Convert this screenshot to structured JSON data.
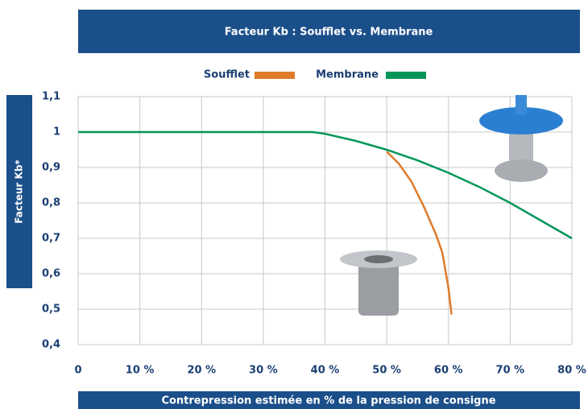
{
  "chart_data": {
    "type": "line",
    "title": "Facteur Kb : Soufflet vs. Membrane",
    "x_label": "Contrepression estimée en % de la pression de consigne",
    "y_label": "Facteur Kb*",
    "xlim": [
      0,
      80
    ],
    "ylim": [
      0.4,
      1.1
    ],
    "xticks": [
      0,
      {
        "value": 10,
        "label": "10 %"
      },
      {
        "value": 20,
        "label": "20 %"
      },
      {
        "value": 30,
        "label": "30 %"
      },
      {
        "value": 40,
        "label": "40 %"
      },
      {
        "value": 50,
        "label": "50 %"
      },
      {
        "value": 60,
        "label": "60 %"
      },
      {
        "value": 70,
        "label": "70 %"
      },
      {
        "value": 80,
        "label": "80 %"
      }
    ],
    "yticks": [
      {
        "value": 0.4,
        "label": "0,4"
      },
      {
        "value": 0.5,
        "label": "0,5"
      },
      {
        "value": 0.6,
        "label": "0,6"
      },
      {
        "value": 0.7,
        "label": "0,7"
      },
      {
        "value": 0.8,
        "label": "0,8"
      },
      {
        "value": 0.9,
        "label": "0,9"
      },
      1,
      {
        "value": 1.1,
        "label": "1,1"
      }
    ],
    "grid": true,
    "series": [
      {
        "name": "Soufflet",
        "color": "#e07b2a",
        "x": [
          50,
          52,
          54,
          56,
          58,
          59,
          60,
          60.5
        ],
        "values": [
          0.945,
          0.91,
          0.86,
          0.79,
          0.71,
          0.66,
          0.56,
          0.485
        ]
      },
      {
        "name": "Membrane",
        "color": "#00965a",
        "x": [
          0,
          38,
          40,
          45,
          50,
          55,
          60,
          65,
          70,
          75,
          80
        ],
        "values": [
          1,
          1,
          0.995,
          0.975,
          0.95,
          0.92,
          0.885,
          0.845,
          0.8,
          0.75,
          0.7
        ]
      }
    ]
  }
}
